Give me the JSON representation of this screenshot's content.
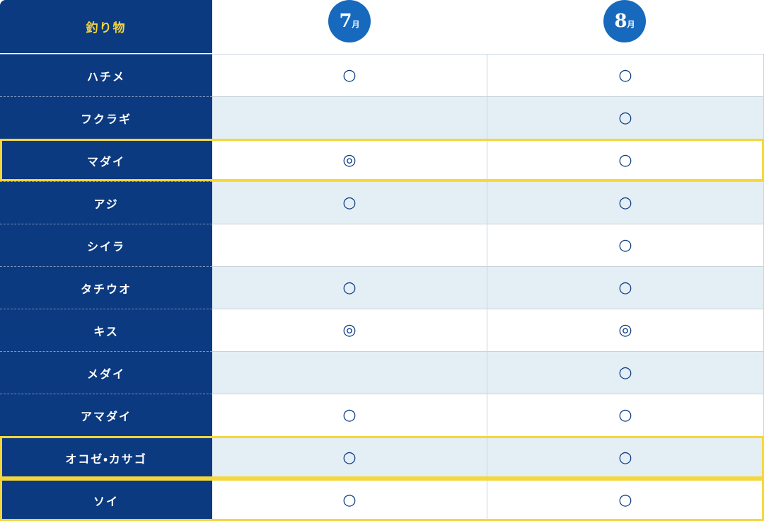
{
  "header": {
    "title": "釣り物",
    "months": [
      {
        "number": "7",
        "unit": "月"
      },
      {
        "number": "8",
        "unit": "月"
      }
    ]
  },
  "table": {
    "rows": [
      {
        "name": "ハチメ",
        "cells": [
          "○",
          "○"
        ]
      },
      {
        "name": "フクラギ",
        "cells": [
          null,
          "○"
        ]
      },
      {
        "name": "マダイ",
        "cells": [
          "◎",
          "○"
        ],
        "highlight": true
      },
      {
        "name": "アジ",
        "cells": [
          "○",
          "○"
        ]
      },
      {
        "name": "シイラ",
        "cells": [
          null,
          "○"
        ]
      },
      {
        "name": "タチウオ",
        "cells": [
          "○",
          "○"
        ]
      },
      {
        "name": "キス",
        "cells": [
          "◎",
          "◎"
        ]
      },
      {
        "name": "メダイ",
        "cells": [
          null,
          "○"
        ]
      },
      {
        "name": "アマダイ",
        "cells": [
          "○",
          "○"
        ]
      },
      {
        "name": "オコゼ・カサゴ",
        "cells": [
          "○",
          "○"
        ],
        "highlight": true
      },
      {
        "name": "ソイ",
        "cells": [
          "○",
          "○"
        ],
        "highlight": true
      }
    ]
  }
}
